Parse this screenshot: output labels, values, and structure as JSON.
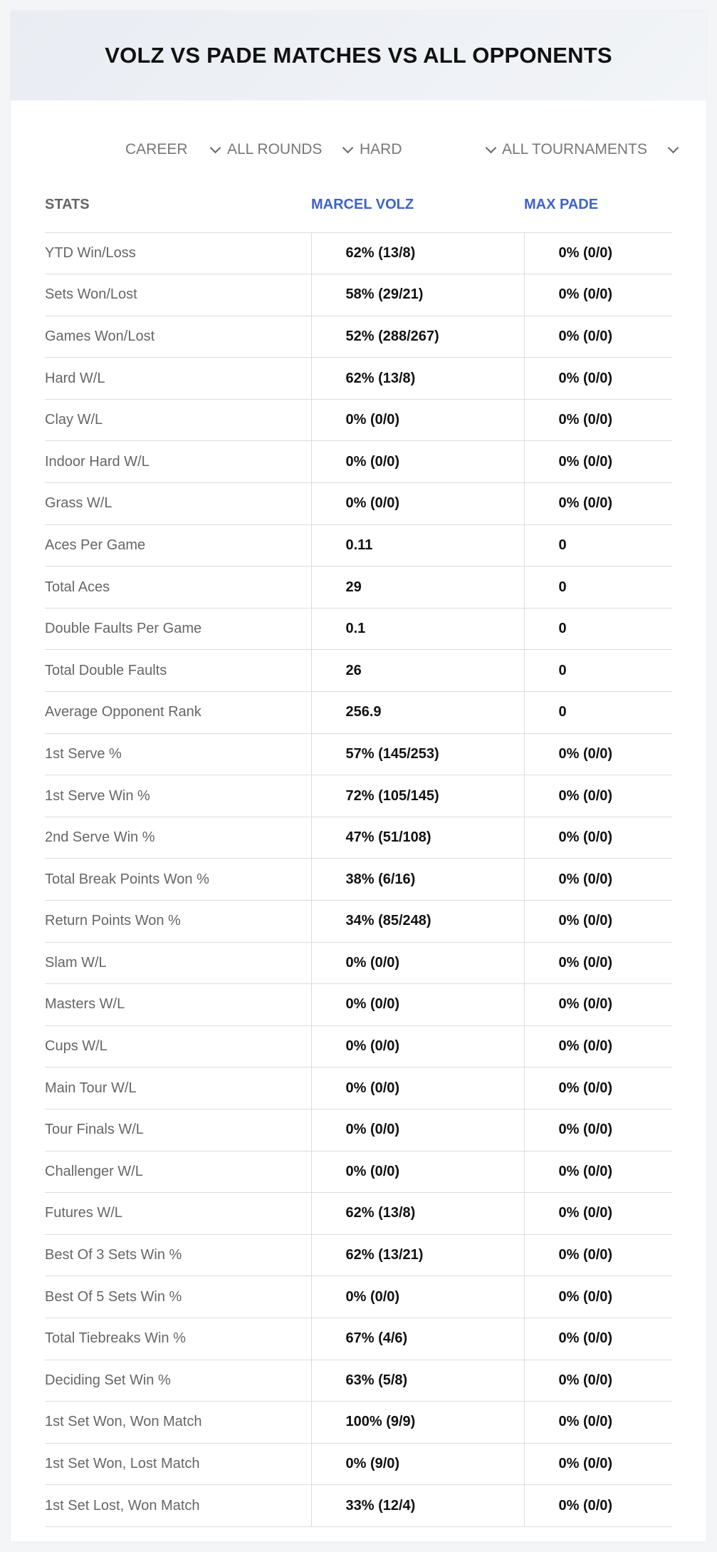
{
  "header": {
    "title": "VOLZ VS PADE MATCHES VS ALL OPPONENTS"
  },
  "filters": {
    "period": "CAREER",
    "rounds": "ALL ROUNDS",
    "surface": "HARD",
    "tournaments": "ALL TOURNAMENTS"
  },
  "table": {
    "headers": {
      "stats": "STATS",
      "player1": "MARCEL VOLZ",
      "player2": "MAX PADE"
    },
    "rows": [
      {
        "label": "YTD Win/Loss",
        "p1": "62% (13/8)",
        "p2": "0% (0/0)"
      },
      {
        "label": "Sets Won/Lost",
        "p1": "58% (29/21)",
        "p2": "0% (0/0)"
      },
      {
        "label": "Games Won/Lost",
        "p1": "52% (288/267)",
        "p2": "0% (0/0)"
      },
      {
        "label": "Hard W/L",
        "p1": "62% (13/8)",
        "p2": "0% (0/0)"
      },
      {
        "label": "Clay W/L",
        "p1": "0% (0/0)",
        "p2": "0% (0/0)"
      },
      {
        "label": "Indoor Hard W/L",
        "p1": "0% (0/0)",
        "p2": "0% (0/0)"
      },
      {
        "label": "Grass W/L",
        "p1": "0% (0/0)",
        "p2": "0% (0/0)"
      },
      {
        "label": "Aces Per Game",
        "p1": "0.11",
        "p2": "0"
      },
      {
        "label": "Total Aces",
        "p1": "29",
        "p2": "0"
      },
      {
        "label": "Double Faults Per Game",
        "p1": "0.1",
        "p2": "0"
      },
      {
        "label": "Total Double Faults",
        "p1": "26",
        "p2": "0"
      },
      {
        "label": "Average Opponent Rank",
        "p1": "256.9",
        "p2": "0"
      },
      {
        "label": "1st Serve %",
        "p1": "57% (145/253)",
        "p2": "0% (0/0)"
      },
      {
        "label": "1st Serve Win %",
        "p1": "72% (105/145)",
        "p2": "0% (0/0)"
      },
      {
        "label": "2nd Serve Win %",
        "p1": "47% (51/108)",
        "p2": "0% (0/0)"
      },
      {
        "label": "Total Break Points Won %",
        "p1": "38% (6/16)",
        "p2": "0% (0/0)"
      },
      {
        "label": "Return Points Won %",
        "p1": "34% (85/248)",
        "p2": "0% (0/0)"
      },
      {
        "label": "Slam W/L",
        "p1": "0% (0/0)",
        "p2": "0% (0/0)"
      },
      {
        "label": "Masters W/L",
        "p1": "0% (0/0)",
        "p2": "0% (0/0)"
      },
      {
        "label": "Cups W/L",
        "p1": "0% (0/0)",
        "p2": "0% (0/0)"
      },
      {
        "label": "Main Tour W/L",
        "p1": "0% (0/0)",
        "p2": "0% (0/0)"
      },
      {
        "label": "Tour Finals W/L",
        "p1": "0% (0/0)",
        "p2": "0% (0/0)"
      },
      {
        "label": "Challenger W/L",
        "p1": "0% (0/0)",
        "p2": "0% (0/0)"
      },
      {
        "label": "Futures W/L",
        "p1": "62% (13/8)",
        "p2": "0% (0/0)"
      },
      {
        "label": "Best Of 3 Sets Win %",
        "p1": "62% (13/21)",
        "p2": "0% (0/0)"
      },
      {
        "label": "Best Of 5 Sets Win %",
        "p1": "0% (0/0)",
        "p2": "0% (0/0)"
      },
      {
        "label": "Total Tiebreaks Win %",
        "p1": "67% (4/6)",
        "p2": "0% (0/0)"
      },
      {
        "label": "Deciding Set Win %",
        "p1": "63% (5/8)",
        "p2": "0% (0/0)"
      },
      {
        "label": "1st Set Won, Won Match",
        "p1": "100% (9/9)",
        "p2": "0% (0/0)"
      },
      {
        "label": "1st Set Won, Lost Match",
        "p1": "0% (9/0)",
        "p2": "0% (0/0)"
      },
      {
        "label": "1st Set Lost, Won Match",
        "p1": "33% (12/4)",
        "p2": "0% (0/0)"
      }
    ]
  }
}
